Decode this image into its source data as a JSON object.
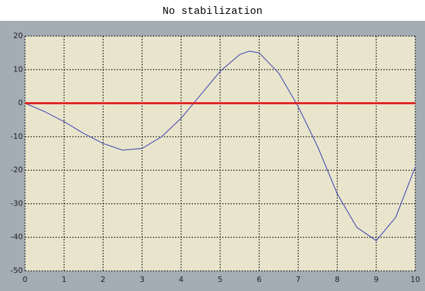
{
  "chart_data": {
    "type": "line",
    "title": "No stabilization",
    "xlim": [
      0,
      10
    ],
    "xticks": [
      0,
      1,
      2,
      3,
      4,
      5,
      6,
      7,
      8,
      9,
      10
    ],
    "ylim": [
      -50,
      20
    ],
    "yticks": [
      -50,
      -40,
      -30,
      -20,
      -10,
      0,
      10,
      20
    ],
    "grid": true,
    "series": [
      {
        "color": "#4a50b0",
        "x": [
          0,
          0.5,
          1,
          1.5,
          2,
          2.5,
          3,
          3.5,
          4,
          4.5,
          5,
          5.5,
          5.75,
          6,
          6.5,
          7,
          7.5,
          8,
          8.5,
          9,
          9.5,
          10
        ],
        "values": [
          0,
          -2.5,
          -5.5,
          -9,
          -12,
          -14,
          -13.5,
          -10,
          -4.5,
          2.5,
          9.5,
          14.5,
          15.5,
          15,
          9,
          -1,
          -13,
          -27,
          -37,
          -41,
          -34,
          -19
        ]
      },
      {
        "color": "#e02020",
        "x": [
          0,
          10
        ],
        "values": [
          0,
          0
        ]
      }
    ]
  }
}
